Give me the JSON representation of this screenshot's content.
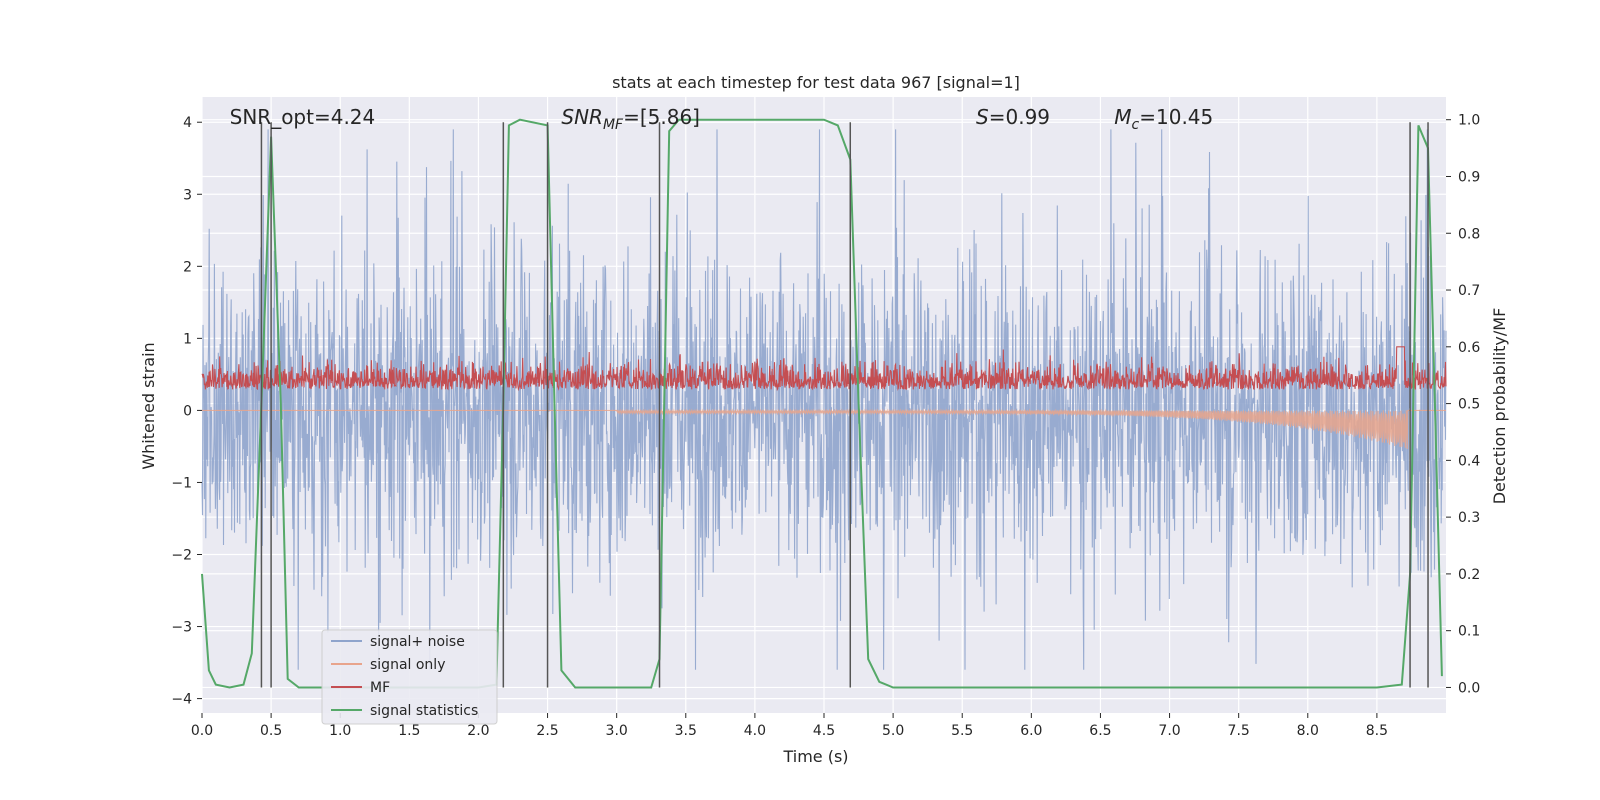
{
  "chart_data": {
    "type": "line",
    "title": "stats at each timestep for test data 967 [signal=1]",
    "xlabel": "Time (s)",
    "ylabel": "Whitened strain",
    "ylabel_right": "Detection probability/MF",
    "xlim": [
      0.0,
      9.0
    ],
    "ylim": [
      -4.2,
      4.35
    ],
    "ylim_right": [
      -0.045,
      1.04
    ],
    "x_ticks": [
      "0.0",
      "0.5",
      "1.0",
      "1.5",
      "2.0",
      "2.5",
      "3.0",
      "3.5",
      "4.0",
      "4.5",
      "5.0",
      "5.5",
      "6.0",
      "6.5",
      "7.0",
      "7.5",
      "8.0",
      "8.5"
    ],
    "x_tick_values": [
      0.0,
      0.5,
      1.0,
      1.5,
      2.0,
      2.5,
      3.0,
      3.5,
      4.0,
      4.5,
      5.0,
      5.5,
      6.0,
      6.5,
      7.0,
      7.5,
      8.0,
      8.5
    ],
    "y_ticks": [
      "−4",
      "−3",
      "−2",
      "−1",
      "0",
      "1",
      "2",
      "3",
      "4"
    ],
    "y_tick_values": [
      -4,
      -3,
      -2,
      -1,
      0,
      1,
      2,
      3,
      4
    ],
    "y_ticks_right": [
      "0.0",
      "0.1",
      "0.2",
      "0.3",
      "0.4",
      "0.5",
      "0.6",
      "0.7",
      "0.8",
      "0.9",
      "1.0"
    ],
    "y_tick_values_right": [
      0.0,
      0.1,
      0.2,
      0.3,
      0.4,
      0.5,
      0.6,
      0.7,
      0.8,
      0.9,
      1.0
    ],
    "grid": true,
    "legend_position": "bottom-left",
    "annotations": [
      {
        "text": "SNR_opt=4.24",
        "x": 0.2
      },
      {
        "text": "SNR_MF=[5.86]",
        "x": 2.6
      },
      {
        "text": "S=0.99",
        "x": 5.6
      },
      {
        "text": "M_c=10.45",
        "x": 6.6
      }
    ],
    "vertical_lines": [
      0.43,
      0.5,
      2.18,
      2.5,
      3.31,
      4.69,
      8.74,
      8.87
    ],
    "series": [
      {
        "name": "signal+ noise",
        "color": "#8fa4cc",
        "axis": "left",
        "y_range": [
          -3.6,
          3.9
        ]
      },
      {
        "name": "signal only",
        "color": "#e8a48c",
        "axis": "left",
        "y_range": [
          -0.6,
          0.1
        ]
      },
      {
        "name": "MF",
        "color": "#c44e52",
        "axis": "right",
        "y_range": [
          0.47,
          0.61
        ]
      },
      {
        "name": "signal statistics",
        "color": "#55a868",
        "axis": "right",
        "x": [
          0.0,
          0.05,
          0.1,
          0.2,
          0.3,
          0.36,
          0.43,
          0.5,
          0.57,
          0.62,
          0.7,
          1.0,
          1.5,
          2.0,
          2.13,
          2.18,
          2.22,
          2.3,
          2.5,
          2.55,
          2.6,
          2.7,
          3.0,
          3.25,
          3.31,
          3.38,
          3.45,
          4.0,
          4.5,
          4.6,
          4.69,
          4.75,
          4.82,
          4.9,
          5.0,
          6.0,
          7.0,
          8.0,
          8.5,
          8.68,
          8.74,
          8.8,
          8.87,
          8.92,
          8.97
        ],
        "y": [
          0.2,
          0.03,
          0.005,
          0.0,
          0.005,
          0.06,
          0.5,
          0.97,
          0.5,
          0.015,
          0.0,
          0.0,
          0.0,
          0.0,
          0.005,
          0.5,
          0.99,
          1.0,
          0.99,
          0.5,
          0.03,
          0.0,
          0.0,
          0.0,
          0.05,
          0.98,
          1.0,
          1.0,
          1.0,
          0.99,
          0.93,
          0.5,
          0.05,
          0.01,
          0.0,
          0.0,
          0.0,
          0.0,
          0.0,
          0.005,
          0.2,
          0.99,
          0.95,
          0.5,
          0.02
        ]
      }
    ]
  }
}
